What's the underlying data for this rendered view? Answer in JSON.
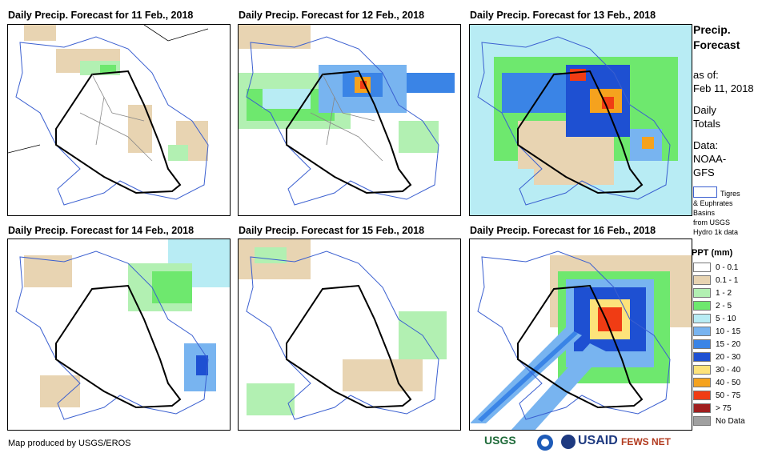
{
  "panels": [
    {
      "title": "Daily Precip. Forecast for 11 Feb., 2018"
    },
    {
      "title": "Daily Precip. Forecast for 12 Feb., 2018"
    },
    {
      "title": "Daily Precip. Forecast for 13 Feb., 2018"
    },
    {
      "title": "Daily Precip. Forecast for 14 Feb., 2018"
    },
    {
      "title": "Daily Precip. Forecast for 15 Feb., 2018"
    },
    {
      "title": "Daily Precip. Forecast for 16 Feb., 2018"
    }
  ],
  "sidebar": {
    "title_line1": "Precip.",
    "title_line2": "Forecast",
    "asof_label": "as of:",
    "asof_date": "Feb 11, 2018",
    "totals_line1": "Daily",
    "totals_line2": "Totals",
    "data_label": "Data:",
    "data_src1": "NOAA-",
    "data_src2": "GFS",
    "basin_line1": "Tigres",
    "basin_line2": "& Euphrates",
    "basin_line3": "Basins",
    "basin_line4": "from USGS",
    "basin_line5": "Hydro 1k data"
  },
  "legend": {
    "title": "PPT (mm)",
    "items": [
      {
        "label": "0 - 0.1",
        "color": "#ffffff"
      },
      {
        "label": "0.1 - 1",
        "color": "#e8d4b2"
      },
      {
        "label": "1 - 2",
        "color": "#b2f0b2"
      },
      {
        "label": "2 - 5",
        "color": "#6ee86e"
      },
      {
        "label": "5 - 10",
        "color": "#b8ecf4"
      },
      {
        "label": "10 - 15",
        "color": "#78b4f0"
      },
      {
        "label": "15 - 20",
        "color": "#3a84e6"
      },
      {
        "label": "20 - 30",
        "color": "#1e50d2"
      },
      {
        "label": "30 - 40",
        "color": "#fde37a"
      },
      {
        "label": "40 - 50",
        "color": "#f5a21e"
      },
      {
        "label": "50 - 75",
        "color": "#f03c14"
      },
      {
        "label": "> 75",
        "color": "#a01e1e"
      },
      {
        "label": "No Data",
        "color": "#a0a0a0"
      }
    ]
  },
  "footer": {
    "credit": "Map produced by USGS/EROS",
    "logo_usgs": "USGS",
    "logo_usaid": "USAID",
    "logo_fews": "FEWS NET"
  }
}
